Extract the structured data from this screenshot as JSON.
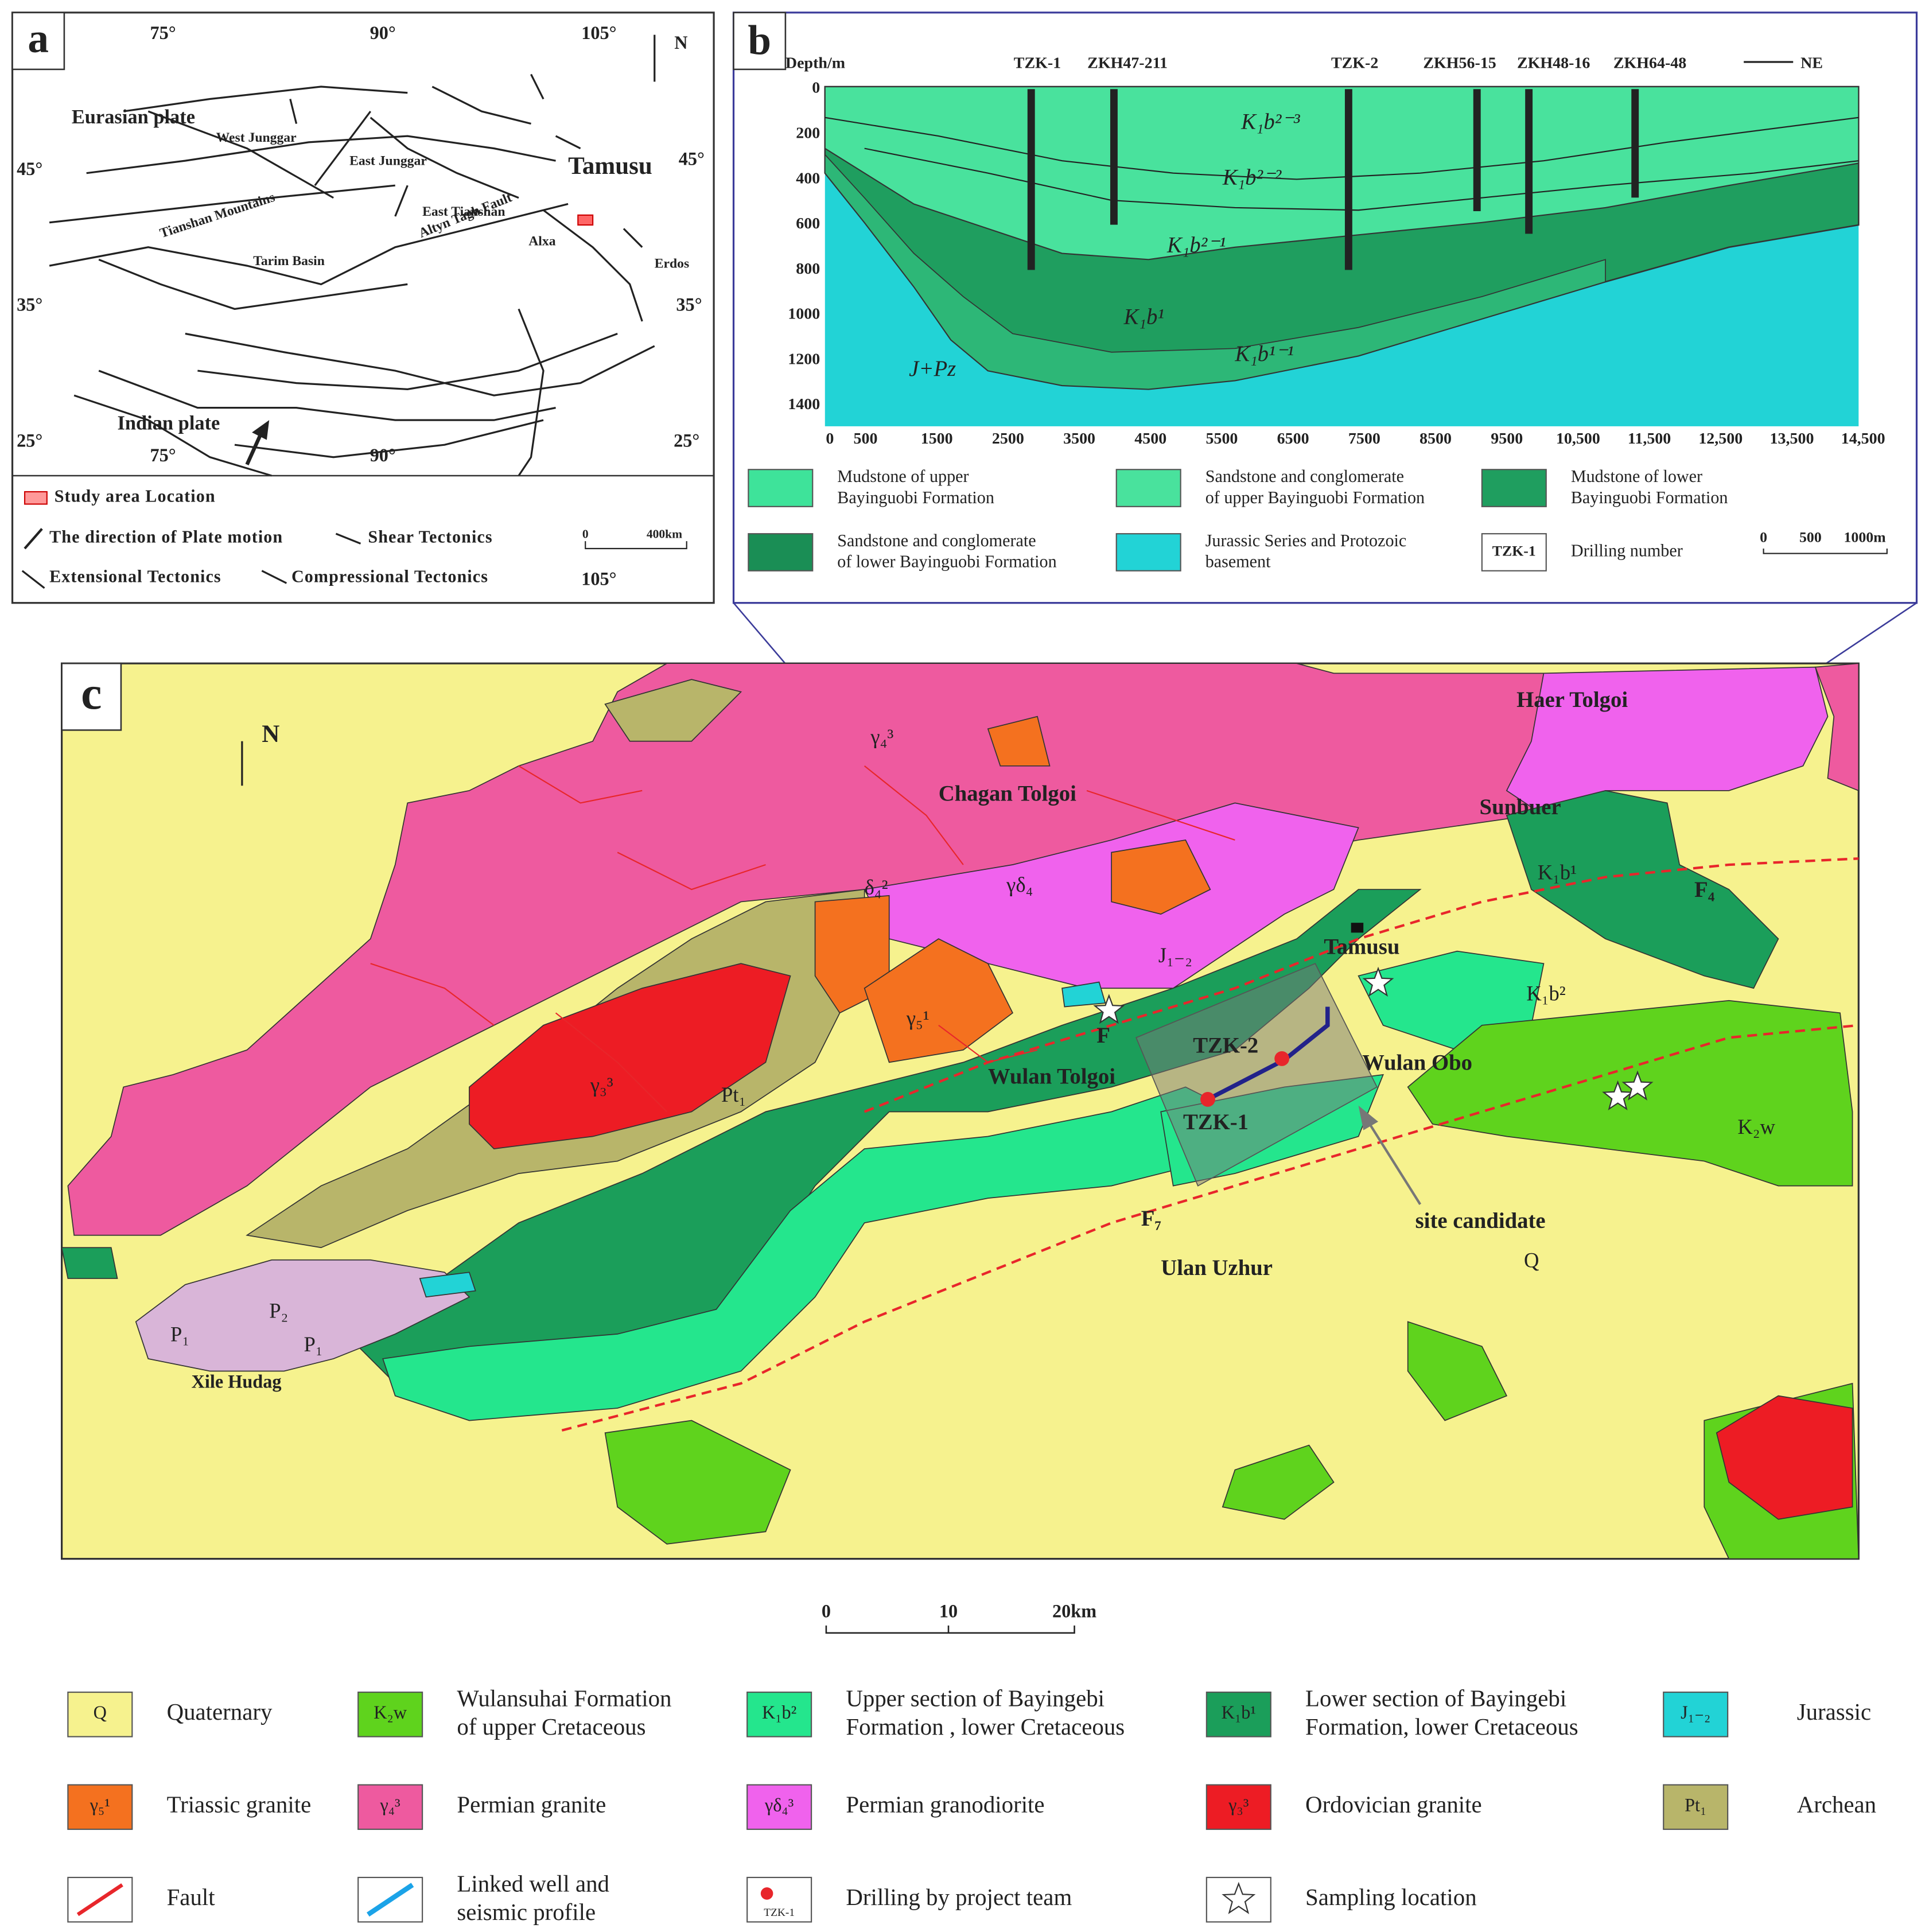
{
  "panel_a": {
    "label": "a",
    "north": "N",
    "places": [
      "Eurasian plate",
      "West Junggar",
      "East Junggar",
      "Tamusu",
      "Tianshan Mountains",
      "East Tianshan",
      "Tarim Basin",
      "Altyn Tagh Fault",
      "Alxa",
      "Erdos",
      "Indian plate"
    ],
    "graticule": [
      "75°",
      "90°",
      "105°",
      "45°",
      "45°",
      "35°",
      "35°",
      "25°",
      "25°",
      "75°",
      "90°",
      "105°"
    ],
    "legend": [
      "Study area Location",
      "The direction of Plate motion",
      "Shear Tectonics",
      "Extensional Tectonics",
      "Compressional Tectonics"
    ],
    "scale": [
      "0",
      "400km"
    ]
  },
  "panel_b": {
    "label": "b",
    "y_axis_title": "Depth/m",
    "y_ticks": [
      "0",
      "200",
      "400",
      "600",
      "800",
      "1000",
      "1200",
      "1400"
    ],
    "x_ticks": [
      "0",
      "500",
      "1500",
      "2500",
      "3500",
      "4500",
      "5500",
      "6500",
      "7500",
      "8500",
      "9500",
      "10,500",
      "11,500",
      "12,500",
      "13,500",
      "14,500"
    ],
    "wells": [
      "TZK-1",
      "ZKH47-211",
      "TZK-2",
      "ZKH56-15",
      "ZKH48-16",
      "ZKH64-48"
    ],
    "direction": "NE",
    "units": [
      "K₁b²⁻³",
      "K₁b²⁻²",
      "K₁b²⁻¹",
      "K₁b¹",
      "K₁b¹⁻¹",
      "J+Pz"
    ],
    "legend": [
      [
        "Mudstone of upper",
        "Bayinguobi Formation"
      ],
      [
        "Sandstone and conglomerate",
        "of upper Bayinguobi Formation"
      ],
      [
        "Mudstone of lower",
        "Bayinguobi Formation"
      ],
      [
        "Sandstone and conglomerate",
        "of lower Bayinguobi Formation"
      ],
      [
        "Jurassic Series and  Protozoic",
        "basement"
      ],
      [
        "Drilling number"
      ]
    ],
    "drill_key": "TZK-1",
    "scale": [
      "0",
      "500",
      "1000m"
    ]
  },
  "panel_c": {
    "label": "c",
    "north": "N",
    "places": [
      "Haer Tolgoi",
      "Chagan  Tolgoi",
      "Sunbuer",
      "Tamusu",
      "Wulan Tolgoi",
      "Wulan Obo",
      "TZK-2",
      "TZK-1",
      "site candidate",
      "Ulan Uzhur",
      "Xile Hudag"
    ],
    "units": [
      "γ₄³",
      "δ₄²",
      "γδ₄",
      "γ₃³",
      "Pt₁",
      "γ₅¹",
      "K₁b¹",
      "K₁b²",
      "K₂w",
      "Q",
      "P₁",
      "P₂",
      "P₁",
      "J₁₋₂"
    ],
    "faults": [
      "F₄",
      "F₇",
      "F"
    ],
    "scale": [
      "0",
      "10",
      "20km"
    ],
    "legend": [
      {
        "symbol": "Q",
        "lines": [
          "Quaternary"
        ]
      },
      {
        "symbol": "K₂w",
        "lines": [
          "Wulansuhai Formation",
          "of upper Cretaceous"
        ]
      },
      {
        "symbol": "K₁b²",
        "lines": [
          "Upper section of Bayingebi",
          "Formation , lower Cretaceous"
        ]
      },
      {
        "symbol": "K₁b¹",
        "lines": [
          "Lower section of Bayingebi",
          "Formation, lower Cretaceous"
        ]
      },
      {
        "symbol": "J₁₋₂",
        "lines": [
          "Jurassic"
        ]
      },
      {
        "symbol": "γ₅¹",
        "lines": [
          "Triassic granite"
        ]
      },
      {
        "symbol": "γ₄³",
        "lines": [
          "Permian granite"
        ]
      },
      {
        "symbol": "γδ₄³",
        "lines": [
          "Permian granodiorite"
        ]
      },
      {
        "symbol": "γ₃³",
        "lines": [
          "Ordovician granite"
        ]
      },
      {
        "symbol": "Pt₁",
        "lines": [
          "Archean"
        ]
      },
      {
        "lines": [
          "Fault"
        ]
      },
      {
        "lines": [
          "Linked well and",
          "seismic profile"
        ]
      },
      {
        "symbol": "TZK-1",
        "lines": [
          "Drilling by project team"
        ]
      },
      {
        "lines": [
          "Sampling location"
        ]
      }
    ]
  }
}
